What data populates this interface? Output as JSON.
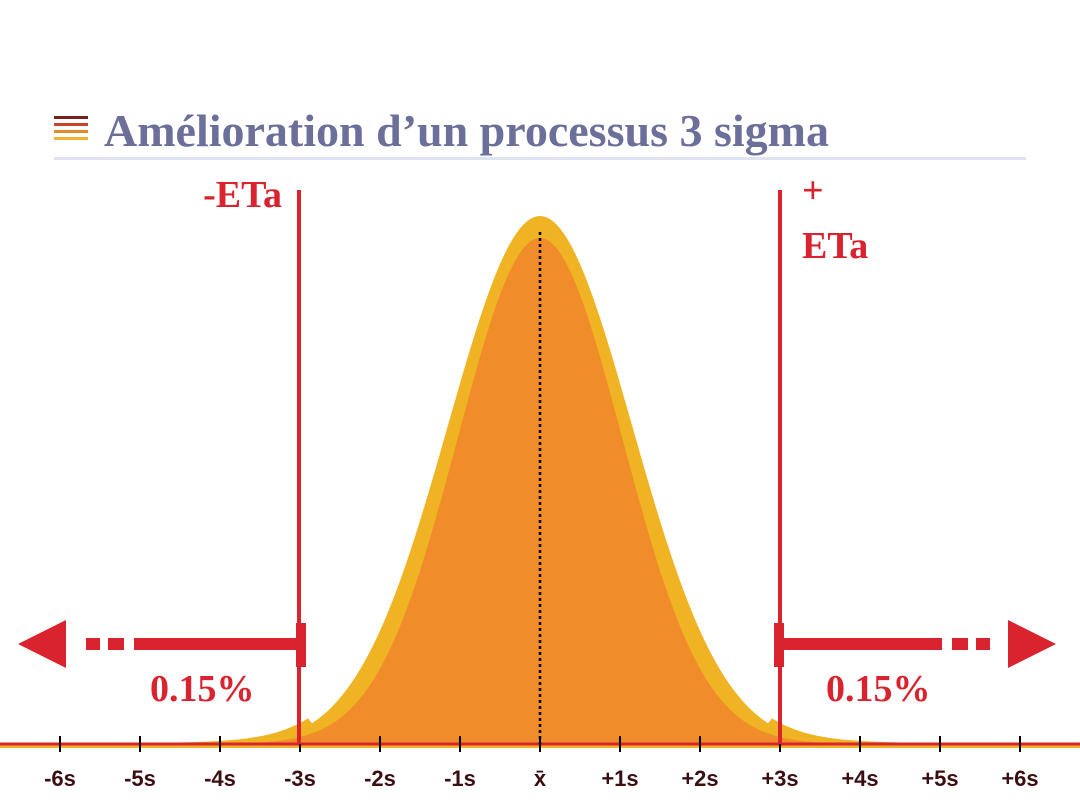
{
  "header": {
    "title": "Amélioration d’un processus 3 sigma",
    "icon": "lines-icon",
    "icon_colors": [
      "#7a1f1f",
      "#c8452a",
      "#e58a2c",
      "#f2b134"
    ]
  },
  "limits": {
    "lower_label": "-ETa",
    "upper_label_line1": "+",
    "upper_label_line2": "ETa",
    "left_tail_pct": "0.15%",
    "right_tail_pct": "0.15%"
  },
  "chart_data": {
    "type": "area",
    "x_ticks": [
      "-6s",
      "-5s",
      "-4s",
      "-3s",
      "-2s",
      "-1s",
      "x̄",
      "+1s",
      "+2s",
      "+3s",
      "+4s",
      "+5s",
      "+6s"
    ],
    "x_range": [
      -6,
      6
    ],
    "mean": 0,
    "sigma": 1,
    "spec_limits": [
      -3,
      3
    ],
    "tail_fraction_pct": [
      0.15,
      0.15
    ],
    "colors": {
      "curve": "#f0b323",
      "fill": "#f08c2a",
      "limit": "#d9232e"
    }
  }
}
